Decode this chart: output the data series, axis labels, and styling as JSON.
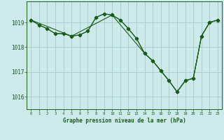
{
  "background_color": "#cceaea",
  "grid_color": "#aacfcf",
  "line_color": "#1a5c1a",
  "title": "Graphe pression niveau de la mer (hPa)",
  "ylim": [
    1015.5,
    1019.85
  ],
  "xlim": [
    -0.5,
    23.5
  ],
  "yticks": [
    1016,
    1017,
    1018,
    1019
  ],
  "xticks": [
    0,
    1,
    2,
    3,
    4,
    5,
    6,
    7,
    8,
    9,
    10,
    11,
    12,
    13,
    14,
    15,
    16,
    17,
    18,
    19,
    20,
    21,
    22,
    23
  ],
  "line1_x": [
    0,
    1,
    2,
    3,
    4,
    5,
    6,
    7,
    8,
    9,
    10,
    11,
    12,
    13,
    14,
    15,
    16,
    17,
    18,
    19,
    20,
    21,
    22,
    23
  ],
  "line1_y": [
    1019.1,
    1018.9,
    1018.75,
    1018.55,
    1018.55,
    1018.45,
    1018.5,
    1018.65,
    1019.2,
    1019.35,
    1019.3,
    1019.1,
    1018.75,
    1018.35,
    1017.75,
    1017.45,
    1017.05,
    1016.65,
    1016.2,
    1016.65,
    1016.75,
    1018.45,
    1019.0,
    1019.1
  ],
  "line2_x": [
    0,
    1,
    2,
    3,
    4,
    5,
    6,
    7,
    8,
    9,
    10,
    14,
    15,
    16,
    17,
    18,
    19,
    20,
    21,
    22,
    23
  ],
  "line2_y": [
    1019.1,
    1018.9,
    1018.75,
    1018.55,
    1018.55,
    1018.45,
    1018.5,
    1018.65,
    1019.2,
    1019.35,
    1019.3,
    1017.75,
    1017.45,
    1017.05,
    1016.65,
    1016.2,
    1016.65,
    1016.75,
    1018.45,
    1019.0,
    1019.1
  ],
  "line3_x": [
    0,
    5,
    10,
    11,
    12,
    13,
    14,
    15,
    16,
    17,
    18,
    19,
    20,
    21,
    22,
    23
  ],
  "line3_y": [
    1019.1,
    1018.45,
    1019.3,
    1019.1,
    1018.75,
    1018.35,
    1017.75,
    1017.45,
    1017.05,
    1016.65,
    1016.2,
    1016.65,
    1016.75,
    1018.45,
    1019.0,
    1019.1
  ]
}
